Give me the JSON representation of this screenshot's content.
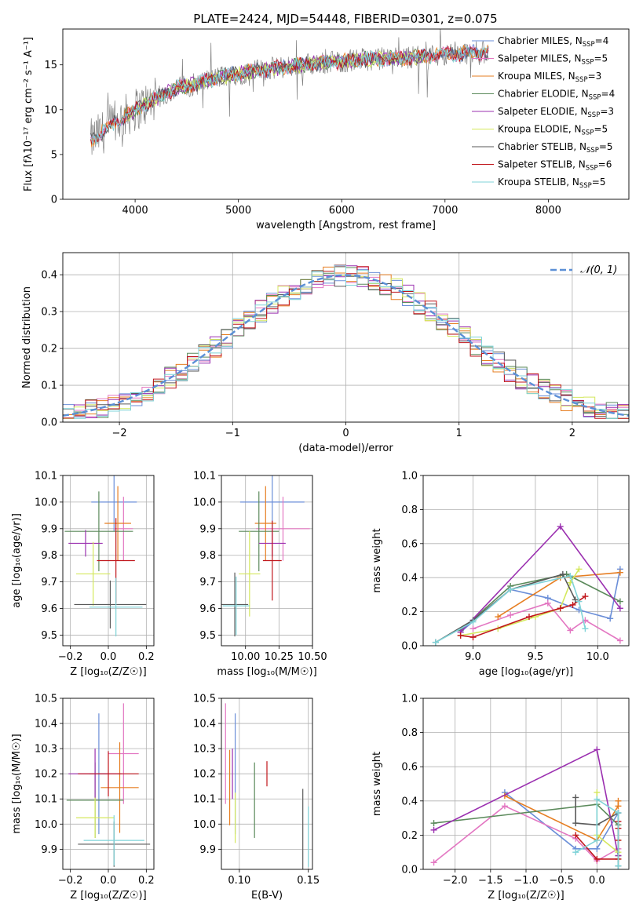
{
  "figure": {
    "title": "PLATE=2424, MJD=54448, FIBERID=0301, z=0.075",
    "background": "#ffffff",
    "grid_color": "#b0b0b0"
  },
  "chart_data": [
    {
      "id": "spectrum",
      "type": "line",
      "title": "PLATE=2424, MJD=54448, FIBERID=0301, z=0.075",
      "xlabel": "wavelength [Angstrom, rest frame]",
      "ylabel": "Flux [fλ10⁻¹⁷ erg cm⁻² s⁻¹ A⁻¹]",
      "xlim": [
        3300,
        8780
      ],
      "ylim": [
        0,
        19
      ],
      "xticks": [
        4000,
        5000,
        6000,
        7000,
        8000
      ],
      "yticks": [
        0,
        5,
        10,
        15
      ],
      "grid": false,
      "legend_position": "top-right",
      "data_color": "#808080",
      "data_range": [
        3570,
        7420
      ],
      "continuum": {
        "x": [
          3570,
          3800,
          4000,
          4200,
          4400,
          4600,
          4800,
          5000,
          5200,
          5400,
          5600,
          5800,
          6000,
          6200,
          6400,
          6600,
          6800,
          7000,
          7200,
          7400
        ],
        "y": [
          6.5,
          8.5,
          10.0,
          11.2,
          12.4,
          12.9,
          13.6,
          14.0,
          14.4,
          14.7,
          15.0,
          15.2,
          15.4,
          15.6,
          15.7,
          15.8,
          16.0,
          16.2,
          16.3,
          16.4
        ]
      },
      "series": [
        {
          "name": "Chabrier MILES, N_SSP=4",
          "label_main": "Chabrier MILES, N",
          "label_sub": "SSP",
          "label_tail": "=4",
          "color": "#6a8ed8",
          "range": [
            3570,
            7420
          ]
        },
        {
          "name": "Salpeter MILES, N_SSP=5",
          "label_main": "Salpeter MILES, N",
          "label_sub": "SSP",
          "label_tail": "=5",
          "color": "#e377c2",
          "range": [
            3570,
            7420
          ]
        },
        {
          "name": "Kroupa MILES, N_SSP=3",
          "label_main": "Kroupa MILES, N",
          "label_sub": "SSP",
          "label_tail": "=3",
          "color": "#e67e22",
          "range": [
            3570,
            7420
          ]
        },
        {
          "name": "Chabrier ELODIE, N_SSP=4",
          "label_main": "Chabrier ELODIE, N",
          "label_sub": "SSP",
          "label_tail": "=4",
          "color": "#5b8a5b",
          "range": [
            3900,
            6800
          ]
        },
        {
          "name": "Salpeter ELODIE, N_SSP=3",
          "label_main": "Salpeter ELODIE, N",
          "label_sub": "SSP",
          "label_tail": "=3",
          "color": "#9b30b0",
          "range": [
            3900,
            6800
          ]
        },
        {
          "name": "Kroupa ELODIE, N_SSP=5",
          "label_main": "Kroupa ELODIE, N",
          "label_sub": "SSP",
          "label_tail": "=5",
          "color": "#d4e85c",
          "range": [
            3900,
            6800
          ]
        },
        {
          "name": "Chabrier STELIB, N_SSP=5",
          "label_main": "Chabrier STELIB, N",
          "label_sub": "SSP",
          "label_tail": "=5",
          "color": "#5a5a5a",
          "range": [
            3570,
            7420
          ]
        },
        {
          "name": "Salpeter STELIB, N_SSP=6",
          "label_main": "Salpeter STELIB, N",
          "label_sub": "SSP",
          "label_tail": "=6",
          "color": "#c0161c",
          "range": [
            3570,
            7420
          ]
        },
        {
          "name": "Kroupa STELIB, N_SSP=5",
          "label_main": "Kroupa STELIB, N",
          "label_sub": "SSP",
          "label_tail": "=5",
          "color": "#7fd3d8",
          "range": [
            3570,
            7420
          ]
        }
      ]
    },
    {
      "id": "residuals",
      "type": "line",
      "xlabel": "(data-model)/error",
      "ylabel": "Normed distribution",
      "xlim": [
        -2.5,
        2.5
      ],
      "ylim": [
        0,
        0.46
      ],
      "xticks": [
        -2,
        -1,
        0,
        1,
        2
      ],
      "yticks": [
        0.0,
        0.1,
        0.2,
        0.3,
        0.4
      ],
      "grid": true,
      "legend_position": "top-right",
      "gaussian": {
        "name": "𝒩(0, 1)",
        "mean": 0,
        "sigma": 1,
        "color": "#5b8fd6"
      },
      "bin_width": 0.1,
      "histogram_colors": [
        "#6a8ed8",
        "#e377c2",
        "#e67e22",
        "#5b8a5b",
        "#9b30b0",
        "#d4e85c",
        "#5a5a5a",
        "#c0161c",
        "#7fd3d8"
      ]
    },
    {
      "id": "age-vs-Z",
      "type": "scatter",
      "xlabel": "Z [log₁₀(Z/Z☉)]",
      "ylabel": "age  [log₁₀(age/yr)]",
      "xlim": [
        -0.24,
        0.24
      ],
      "ylim": [
        9.46,
        10.1
      ],
      "xticks": [
        -0.2,
        0.0,
        0.2
      ],
      "yticks": [
        9.5,
        9.6,
        9.7,
        9.8,
        9.9,
        10.0,
        10.1
      ],
      "grid": true,
      "points": [
        {
          "x": 0.03,
          "y": 10.0,
          "xerr": 0.12,
          "yerr": 0.11,
          "color": "#6a8ed8"
        },
        {
          "x": 0.08,
          "y": 9.9,
          "xerr": 0.05,
          "yerr": 0.12,
          "color": "#e377c2"
        },
        {
          "x": 0.05,
          "y": 9.92,
          "xerr": 0.07,
          "yerr": 0.14,
          "color": "#e67e22"
        },
        {
          "x": -0.05,
          "y": 9.89,
          "xerr": 0.18,
          "yerr": 0.15,
          "color": "#5b8a5b"
        },
        {
          "x": -0.12,
          "y": 9.845,
          "xerr": 0.09,
          "yerr": 0.05,
          "color": "#9b30b0"
        },
        {
          "x": -0.08,
          "y": 9.73,
          "xerr": 0.09,
          "yerr": 0.12,
          "color": "#d4e85c"
        },
        {
          "x": 0.01,
          "y": 9.615,
          "xerr": 0.19,
          "yerr": 0.09,
          "color": "#5a5a5a"
        },
        {
          "x": 0.04,
          "y": 9.78,
          "xerr": 0.1,
          "yerr": 0.16,
          "color": "#c0161c"
        },
        {
          "x": 0.04,
          "y": 9.605,
          "xerr": 0.14,
          "yerr": 0.11,
          "color": "#7fd3d8"
        }
      ]
    },
    {
      "id": "age-vs-mass",
      "type": "scatter",
      "xlabel": "mass [log₁₀(M/M☉)]",
      "ylabel": "",
      "xlim": [
        9.82,
        10.5
      ],
      "ylim": [
        9.46,
        10.1
      ],
      "xticks": [
        10.0,
        10.25,
        10.5
      ],
      "yticks": [
        9.5,
        9.6,
        9.7,
        9.8,
        9.9,
        10.0,
        10.1
      ],
      "grid": true,
      "points": [
        {
          "x": 10.2,
          "y": 10.0,
          "xerr": 0.24,
          "yerr": 0.11,
          "color": "#6a8ed8"
        },
        {
          "x": 10.28,
          "y": 9.9,
          "xerr": 0.2,
          "yerr": 0.12,
          "color": "#e377c2"
        },
        {
          "x": 10.15,
          "y": 9.92,
          "xerr": 0.08,
          "yerr": 0.14,
          "color": "#e67e22"
        },
        {
          "x": 10.1,
          "y": 9.89,
          "xerr": 0.15,
          "yerr": 0.15,
          "color": "#5b8a5b"
        },
        {
          "x": 10.2,
          "y": 9.845,
          "xerr": 0.1,
          "yerr": 0.05,
          "color": "#9b30b0"
        },
        {
          "x": 10.03,
          "y": 9.73,
          "xerr": 0.08,
          "yerr": 0.16,
          "color": "#d4e85c"
        },
        {
          "x": 9.92,
          "y": 9.615,
          "xerr": 0.1,
          "yerr": 0.12,
          "color": "#5a5a5a"
        },
        {
          "x": 10.2,
          "y": 9.78,
          "xerr": 0.07,
          "yerr": 0.15,
          "color": "#c0161c"
        },
        {
          "x": 9.93,
          "y": 9.61,
          "xerr": 0.1,
          "yerr": 0.11,
          "color": "#7fd3d8"
        }
      ]
    },
    {
      "id": "mass-weight-vs-age",
      "type": "line",
      "xlabel": "age  [log₁₀(age/yr)]",
      "ylabel": "mass weight",
      "xlim": [
        8.6,
        10.25
      ],
      "ylim": [
        0,
        1.0
      ],
      "xticks": [
        9.0,
        9.5,
        10.0
      ],
      "yticks": [
        0.0,
        0.2,
        0.4,
        0.6,
        0.8,
        1.0
      ],
      "grid": true,
      "series": [
        {
          "color": "#6a8ed8",
          "x": [
            8.9,
            9.3,
            9.6,
            9.85,
            10.1,
            10.18
          ],
          "y": [
            0.08,
            0.33,
            0.28,
            0.21,
            0.16,
            0.45
          ]
        },
        {
          "color": "#e377c2",
          "x": [
            9.0,
            9.3,
            9.6,
            9.78,
            9.9,
            10.18
          ],
          "y": [
            0.1,
            0.18,
            0.25,
            0.09,
            0.15,
            0.03
          ]
        },
        {
          "color": "#e67e22",
          "x": [
            9.2,
            9.7,
            10.18
          ],
          "y": [
            0.17,
            0.4,
            0.43
          ]
        },
        {
          "color": "#5b8a5b",
          "x": [
            8.9,
            9.3,
            9.75,
            10.18
          ],
          "y": [
            0.09,
            0.35,
            0.42,
            0.26
          ]
        },
        {
          "color": "#9b30b0",
          "x": [
            8.9,
            9.7,
            10.18
          ],
          "y": [
            0.08,
            0.7,
            0.22
          ]
        },
        {
          "color": "#d4e85c",
          "x": [
            8.9,
            9.2,
            9.5,
            9.7,
            9.78,
            9.85
          ],
          "y": [
            0.06,
            0.1,
            0.17,
            0.22,
            0.37,
            0.45
          ]
        },
        {
          "color": "#5a5a5a",
          "x": [
            8.7,
            9.0,
            9.3,
            9.72,
            9.82
          ],
          "y": [
            0.02,
            0.15,
            0.33,
            0.42,
            0.27
          ]
        },
        {
          "color": "#c0161c",
          "x": [
            8.9,
            9.0,
            9.45,
            9.7,
            9.8,
            9.9
          ],
          "y": [
            0.06,
            0.05,
            0.17,
            0.22,
            0.24,
            0.29
          ]
        },
        {
          "color": "#7fd3d8",
          "x": [
            8.7,
            9.0,
            9.3,
            9.78,
            9.85,
            9.9
          ],
          "y": [
            0.02,
            0.14,
            0.33,
            0.41,
            0.26,
            0.1
          ]
        }
      ]
    },
    {
      "id": "mass-vs-Z",
      "type": "scatter",
      "xlabel": "Z [log₁₀(Z/Z☉)]",
      "ylabel": "mass [log₁₀(M/M☉)]",
      "xlim": [
        -0.24,
        0.24
      ],
      "ylim": [
        9.82,
        10.5
      ],
      "xticks": [
        -0.2,
        0.0,
        0.2
      ],
      "yticks": [
        9.9,
        10.0,
        10.1,
        10.2,
        10.3,
        10.4,
        10.5
      ],
      "grid": true,
      "points": [
        {
          "x": -0.05,
          "y": 10.2,
          "xerr": 0.05,
          "yerr": 0.24,
          "color": "#6a8ed8"
        },
        {
          "x": 0.08,
          "y": 10.28,
          "xerr": 0.08,
          "yerr": 0.2,
          "color": "#e377c2"
        },
        {
          "x": 0.06,
          "y": 10.145,
          "xerr": 0.1,
          "yerr": 0.18,
          "color": "#e67e22"
        },
        {
          "x": -0.07,
          "y": 10.095,
          "xerr": 0.15,
          "yerr": 0.15,
          "color": "#5b8a5b"
        },
        {
          "x": -0.07,
          "y": 10.2,
          "xerr": 0.14,
          "yerr": 0.1,
          "color": "#9b30b0"
        },
        {
          "x": -0.07,
          "y": 10.025,
          "xerr": 0.1,
          "yerr": 0.08,
          "color": "#d4e85c"
        },
        {
          "x": 0.03,
          "y": 9.92,
          "xerr": 0.19,
          "yerr": 0.09,
          "color": "#5a5a5a"
        },
        {
          "x": 0.0,
          "y": 10.2,
          "xerr": 0.16,
          "yerr": 0.09,
          "color": "#c0161c"
        },
        {
          "x": 0.03,
          "y": 9.935,
          "xerr": 0.16,
          "yerr": 0.1,
          "color": "#7fd3d8"
        }
      ]
    },
    {
      "id": "mass-vs-ebv",
      "type": "scatter",
      "xlabel": "E(B-V)",
      "ylabel": "",
      "xlim": [
        0.087,
        0.153
      ],
      "ylim": [
        9.82,
        10.5
      ],
      "xticks": [
        0.1,
        0.15
      ],
      "yticks": [
        9.9,
        10.0,
        10.1,
        10.2,
        10.3,
        10.4,
        10.5
      ],
      "grid": true,
      "points": [
        {
          "x": 0.097,
          "y": 10.2,
          "xerr": 0,
          "yerr": 0.24,
          "color": "#6a8ed8"
        },
        {
          "x": 0.09,
          "y": 10.28,
          "xerr": 0,
          "yerr": 0.2,
          "color": "#e377c2"
        },
        {
          "x": 0.093,
          "y": 10.145,
          "xerr": 0,
          "yerr": 0.15,
          "color": "#e67e22"
        },
        {
          "x": 0.111,
          "y": 10.095,
          "xerr": 0,
          "yerr": 0.15,
          "color": "#5b8a5b"
        },
        {
          "x": 0.095,
          "y": 10.2,
          "xerr": 0,
          "yerr": 0.1,
          "color": "#9b30b0"
        },
        {
          "x": 0.097,
          "y": 10.025,
          "xerr": 0,
          "yerr": 0.1,
          "color": "#d4e85c"
        },
        {
          "x": 0.146,
          "y": 9.97,
          "xerr": 0,
          "yerr": 0.17,
          "color": "#5a5a5a"
        },
        {
          "x": 0.12,
          "y": 10.2,
          "xerr": 0,
          "yerr": 0.05,
          "color": "#c0161c"
        },
        {
          "x": 0.15,
          "y": 9.95,
          "xerr": 0,
          "yerr": 0.12,
          "color": "#7fd3d8"
        }
      ]
    },
    {
      "id": "mass-weight-vs-Z",
      "type": "line",
      "xlabel": "Z [log₁₀(Z/Z☉)]",
      "ylabel": "mass weight",
      "xlim": [
        -2.45,
        0.45
      ],
      "ylim": [
        0,
        1.0
      ],
      "xticks": [
        -2.0,
        -1.5,
        -1.0,
        -0.5,
        0.0
      ],
      "yticks": [
        0.0,
        0.2,
        0.4,
        0.6,
        0.8,
        1.0
      ],
      "grid": true,
      "series": [
        {
          "color": "#6a8ed8",
          "x": [
            -1.3,
            -0.3,
            0.0,
            0.3
          ],
          "y": [
            0.45,
            0.12,
            0.12,
            0.33
          ]
        },
        {
          "color": "#e377c2",
          "x": [
            -2.3,
            -1.3,
            -0.3,
            0.0,
            0.3
          ],
          "y": [
            0.04,
            0.37,
            0.18,
            0.05,
            0.12
          ]
        },
        {
          "color": "#e67e22",
          "x": [
            -1.3,
            0.0,
            0.3,
            0.3
          ],
          "y": [
            0.43,
            0.17,
            0.37,
            0.4
          ]
        },
        {
          "color": "#5b8a5b",
          "x": [
            -2.3,
            0.0,
            0.3,
            0.3
          ],
          "y": [
            0.27,
            0.38,
            0.26,
            0.08
          ]
        },
        {
          "color": "#9b30b0",
          "x": [
            -2.3,
            0.0,
            0.3
          ],
          "y": [
            0.23,
            0.7,
            0.08
          ]
        },
        {
          "color": "#d4e85c",
          "x": [
            0.0,
            0.0,
            0.3,
            0.3,
            0.3
          ],
          "y": [
            0.45,
            0.2,
            0.1,
            0.17,
            0.06
          ]
        },
        {
          "color": "#5a5a5a",
          "x": [
            -0.3,
            -0.3,
            0.0,
            0.3,
            0.3
          ],
          "y": [
            0.42,
            0.27,
            0.26,
            0.33,
            0.02
          ]
        },
        {
          "color": "#c0161c",
          "x": [
            -0.3,
            0.0,
            0.3,
            0.3,
            0.3,
            0.3
          ],
          "y": [
            0.2,
            0.06,
            0.06,
            0.24,
            0.28,
            0.17
          ]
        },
        {
          "color": "#7fd3d8",
          "x": [
            -0.3,
            0.0,
            0.0,
            0.3,
            0.3
          ],
          "y": [
            0.1,
            0.17,
            0.41,
            0.33,
            0.02
          ]
        }
      ]
    }
  ]
}
